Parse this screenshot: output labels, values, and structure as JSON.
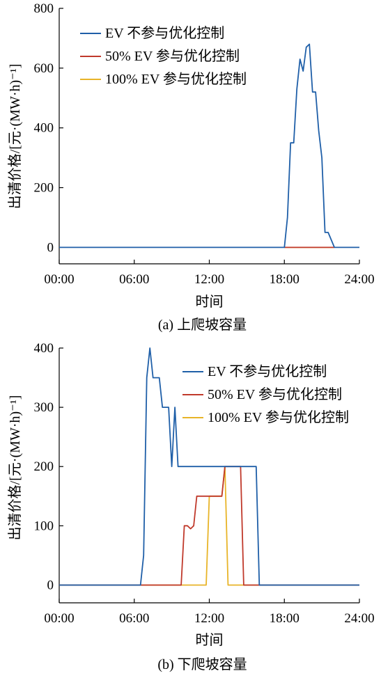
{
  "chart_data": [
    {
      "type": "line",
      "caption": "(a)  上爬坡容量",
      "xlabel": "时间",
      "ylabel": "出清价格/[元·(MW·h)⁻¹]",
      "xlim": [
        0,
        24
      ],
      "ylim": [
        -55,
        800
      ],
      "x_ticks": [
        "00:00",
        "06:00",
        "12:00",
        "18:00",
        "24:00"
      ],
      "y_ticks": [
        "0",
        "200",
        "400",
        "600",
        "800"
      ],
      "legend": "top-left",
      "series": [
        {
          "name": "EV 不参与优化控制",
          "color": "#1f5fa8",
          "points": [
            [
              0,
              0
            ],
            [
              18,
              0
            ],
            [
              18.25,
              100
            ],
            [
              18.5,
              350
            ],
            [
              18.75,
              350
            ],
            [
              19,
              530
            ],
            [
              19.25,
              630
            ],
            [
              19.5,
              590
            ],
            [
              19.75,
              670
            ],
            [
              20,
              680
            ],
            [
              20.25,
              520
            ],
            [
              20.5,
              520
            ],
            [
              20.75,
              390
            ],
            [
              21,
              300
            ],
            [
              21.25,
              50
            ],
            [
              21.5,
              50
            ],
            [
              22,
              0
            ],
            [
              24,
              0
            ]
          ]
        },
        {
          "name": "50% EV 参与优化控制",
          "color": "#c0392b",
          "points": [
            [
              18,
              0
            ],
            [
              22,
              0
            ]
          ]
        },
        {
          "name": "100% EV 参与优化控制",
          "color": "#e8b428",
          "points": [
            [
              18,
              0
            ],
            [
              22,
              0
            ]
          ]
        }
      ]
    },
    {
      "type": "line",
      "caption": "(b)  下爬坡容量",
      "xlabel": "时间",
      "ylabel": "出清价格/[元·(MW·h)⁻¹]",
      "xlim": [
        0,
        24
      ],
      "ylim": [
        -30,
        400
      ],
      "x_ticks": [
        "00:00",
        "06:00",
        "12:00",
        "18:00",
        "24:00"
      ],
      "y_ticks": [
        "0",
        "100",
        "200",
        "300",
        "400"
      ],
      "legend": "top-right",
      "series": [
        {
          "name": "EV 不参与优化控制",
          "color": "#1f5fa8",
          "points": [
            [
              0,
              0
            ],
            [
              6.5,
              0
            ],
            [
              6.75,
              50
            ],
            [
              7,
              350
            ],
            [
              7.25,
              400
            ],
            [
              7.5,
              350
            ],
            [
              8,
              350
            ],
            [
              8.25,
              300
            ],
            [
              8.75,
              300
            ],
            [
              9,
              200
            ],
            [
              9.25,
              300
            ],
            [
              9.5,
              200
            ],
            [
              15.75,
              200
            ],
            [
              16,
              0
            ],
            [
              24,
              0
            ]
          ]
        },
        {
          "name": "50% EV 参与优化控制",
          "color": "#c0392b",
          "points": [
            [
              0,
              0
            ],
            [
              9.75,
              0
            ],
            [
              10,
              100
            ],
            [
              10.25,
              100
            ],
            [
              10.5,
              95
            ],
            [
              10.75,
              100
            ],
            [
              11,
              150
            ],
            [
              12,
              150
            ],
            [
              12.25,
              150
            ],
            [
              13,
              150
            ],
            [
              13.25,
              200
            ],
            [
              14.5,
              200
            ],
            [
              14.75,
              0
            ],
            [
              24,
              0
            ]
          ]
        },
        {
          "name": "100% EV 参与优化控制",
          "color": "#e8b428",
          "points": [
            [
              0,
              0
            ],
            [
              11.75,
              0
            ],
            [
              12,
              150
            ],
            [
              12.75,
              150
            ],
            [
              13,
              150
            ],
            [
              13.25,
              200
            ],
            [
              13.5,
              0
            ],
            [
              24,
              0
            ]
          ]
        }
      ]
    }
  ]
}
